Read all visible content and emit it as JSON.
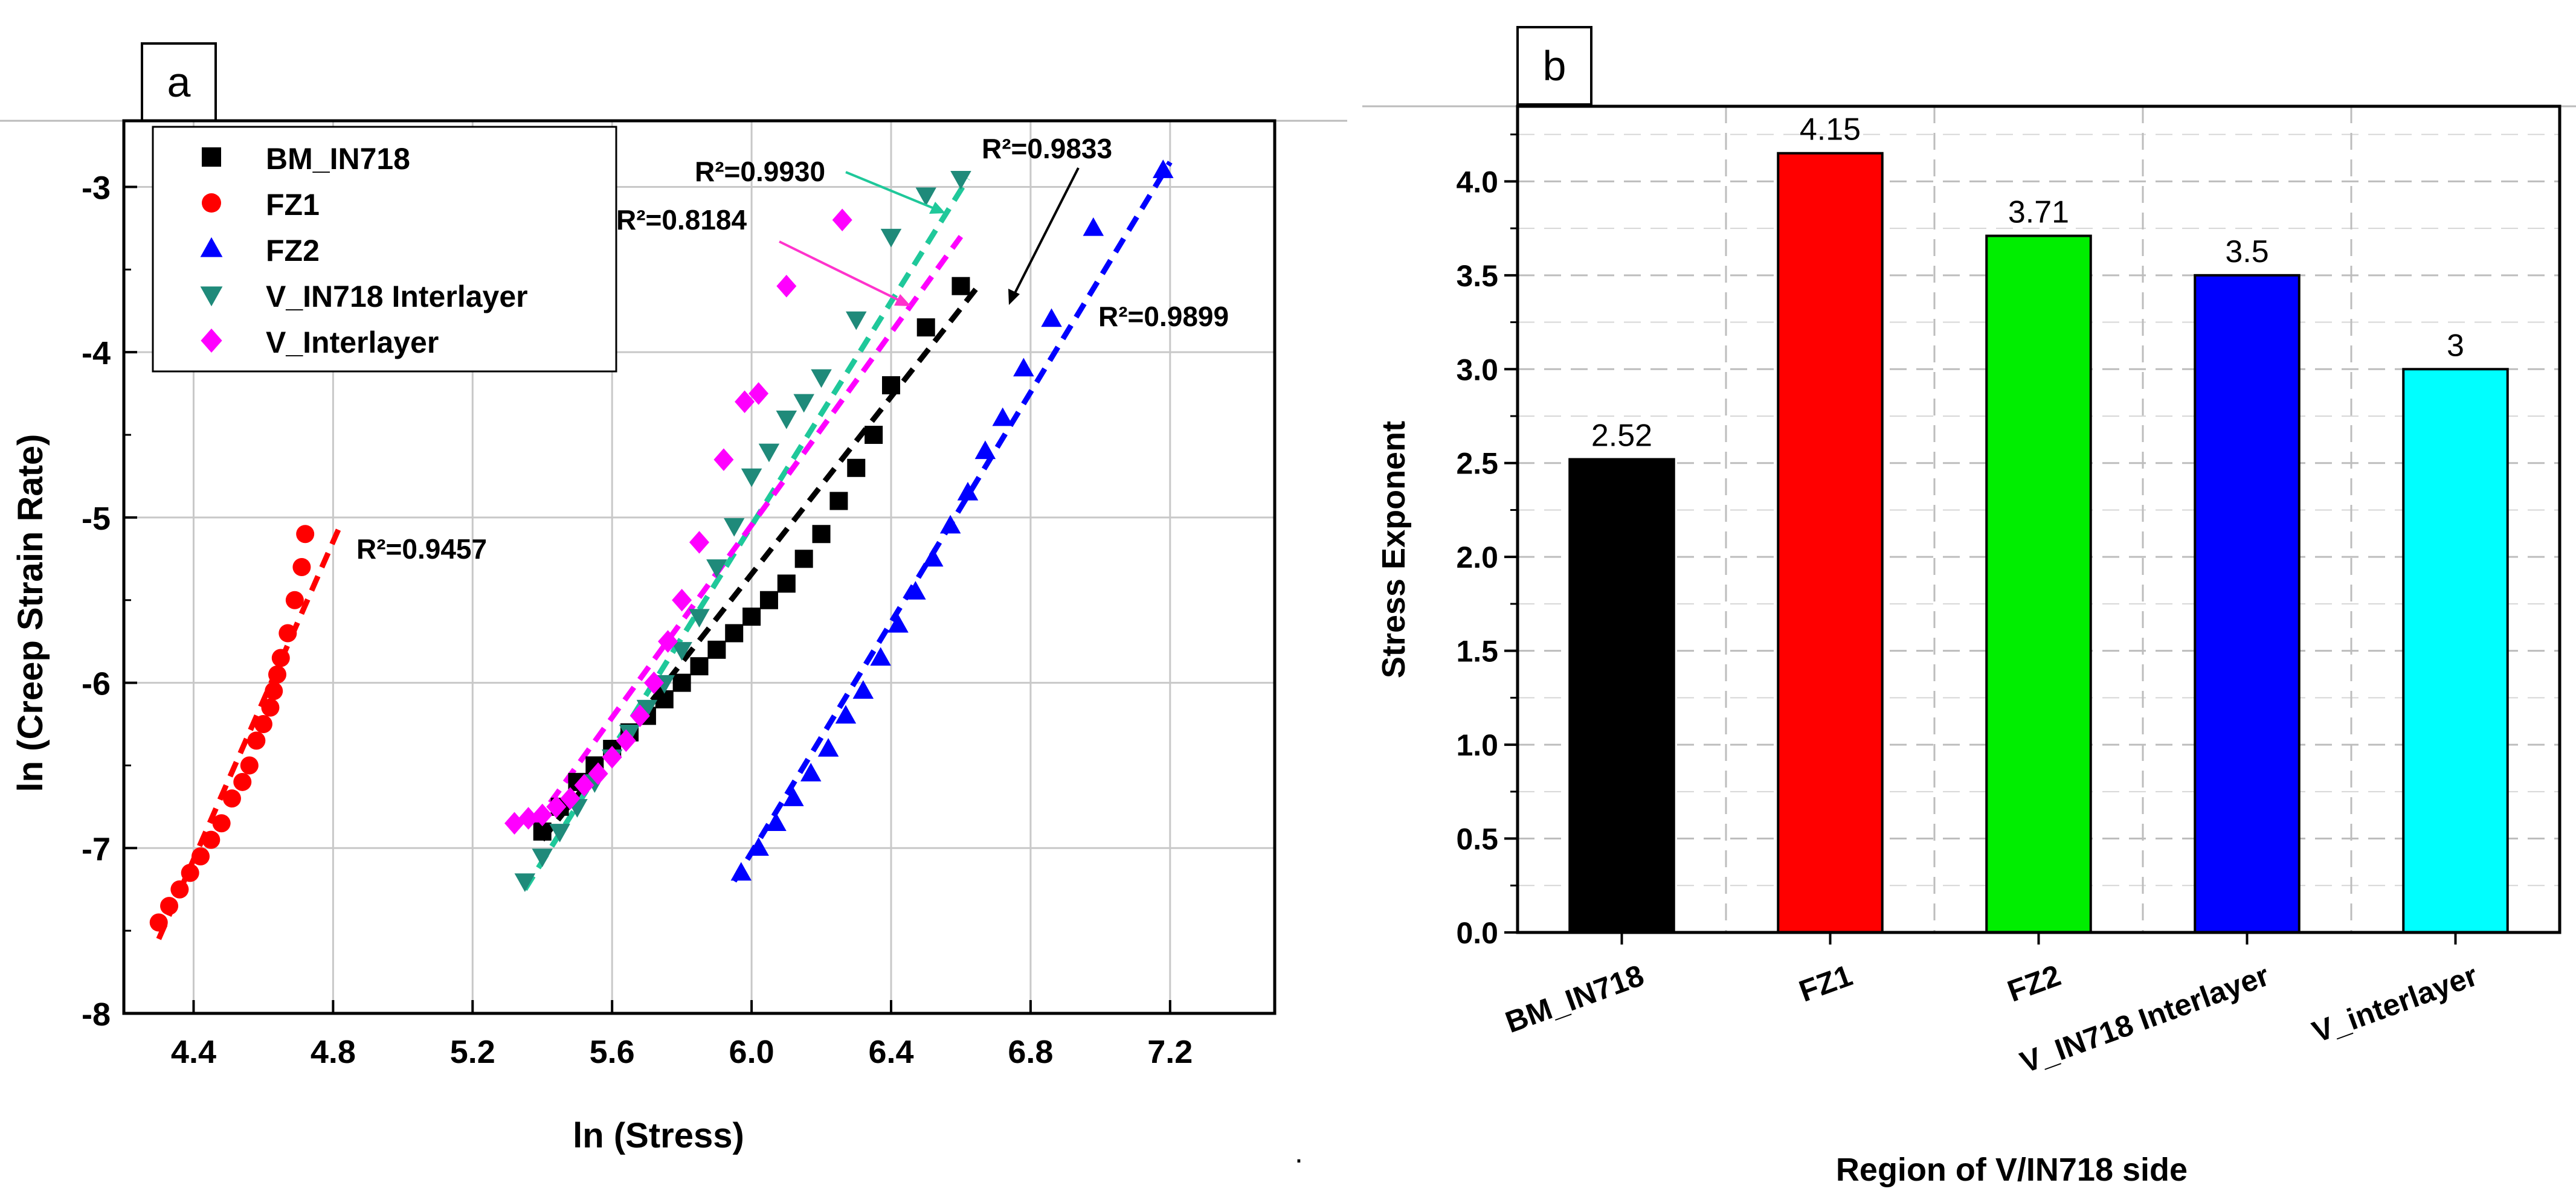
{
  "chart_data": [
    {
      "type": "scatter",
      "panel_label": "a",
      "title": "",
      "xlabel": "ln (Stress)",
      "ylabel": "ln (Creep Strain Rate)",
      "xlim": [
        4.2,
        7.5
      ],
      "ylim": [
        -8,
        -2.6
      ],
      "xticks": [
        4.4,
        4.8,
        5.2,
        5.6,
        6.0,
        6.4,
        6.8,
        7.2
      ],
      "xtick_labels": [
        "4.4",
        "4.8",
        "5.2",
        "5.6",
        "6.0",
        "6.4",
        "6.8",
        "7.2"
      ],
      "yticks": [
        -8,
        -7,
        -6,
        -5,
        -4,
        -3
      ],
      "ytick_labels": [
        "-8",
        "-7",
        "-6",
        "-5",
        "-4",
        "-3"
      ],
      "grid": true,
      "legend_position": "top-left",
      "series": [
        {
          "name": "BM_IN718",
          "color": "#000000",
          "marker": "square",
          "x": [
            5.4,
            5.45,
            5.5,
            5.55,
            5.6,
            5.65,
            5.7,
            5.75,
            5.8,
            5.85,
            5.9,
            5.95,
            6.0,
            6.05,
            6.1,
            6.15,
            6.2,
            6.25,
            6.3,
            6.35,
            6.4,
            6.5,
            6.6
          ],
          "y": [
            -6.9,
            -6.75,
            -6.6,
            -6.5,
            -6.4,
            -6.3,
            -6.2,
            -6.1,
            -6.0,
            -5.9,
            -5.8,
            -5.7,
            -5.6,
            -5.5,
            -5.4,
            -5.25,
            -5.1,
            -4.9,
            -4.7,
            -4.5,
            -4.2,
            -3.85,
            -3.6
          ],
          "fit": {
            "x": [
              5.4,
              6.65
            ],
            "y": [
              -6.95,
              -3.6
            ]
          },
          "r2_label": "R²=0.9833"
        },
        {
          "name": "FZ1",
          "color": "#ff0000",
          "marker": "circle",
          "x": [
            4.3,
            4.33,
            4.36,
            4.39,
            4.42,
            4.45,
            4.48,
            4.51,
            4.54,
            4.56,
            4.58,
            4.6,
            4.62,
            4.63,
            4.64,
            4.65,
            4.67,
            4.69,
            4.71,
            4.72
          ],
          "y": [
            -7.45,
            -7.35,
            -7.25,
            -7.15,
            -7.05,
            -6.95,
            -6.85,
            -6.7,
            -6.6,
            -6.5,
            -6.35,
            -6.25,
            -6.15,
            -6.05,
            -5.95,
            -5.85,
            -5.7,
            -5.5,
            -5.3,
            -5.1
          ],
          "fit": {
            "x": [
              4.3,
              4.82
            ],
            "y": [
              -7.55,
              -5.05
            ]
          },
          "r2_label": "R²=0.9457"
        },
        {
          "name": "FZ2",
          "color": "#0000ff",
          "marker": "triangle-up",
          "x": [
            5.97,
            6.02,
            6.07,
            6.12,
            6.17,
            6.22,
            6.27,
            6.32,
            6.37,
            6.42,
            6.47,
            6.52,
            6.57,
            6.62,
            6.67,
            6.72,
            6.78,
            6.86,
            6.98,
            7.18
          ],
          "y": [
            -7.15,
            -7.0,
            -6.85,
            -6.7,
            -6.55,
            -6.4,
            -6.2,
            -6.05,
            -5.85,
            -5.65,
            -5.45,
            -5.25,
            -5.05,
            -4.85,
            -4.6,
            -4.4,
            -4.1,
            -3.8,
            -3.25,
            -2.9
          ],
          "fit": {
            "x": [
              5.95,
              7.2
            ],
            "y": [
              -7.2,
              -2.85
            ]
          },
          "r2_label": "R²=0.9899"
        },
        {
          "name": "V_IN718 Interlayer",
          "color": "#1f8a7a",
          "marker": "triangle-down",
          "x": [
            5.35,
            5.4,
            5.45,
            5.5,
            5.55,
            5.6,
            5.65,
            5.7,
            5.75,
            5.8,
            5.85,
            5.9,
            5.95,
            6.0,
            6.05,
            6.1,
            6.15,
            6.2,
            6.3,
            6.4,
            6.5,
            6.6
          ],
          "y": [
            -7.2,
            -7.05,
            -6.9,
            -6.75,
            -6.6,
            -6.45,
            -6.3,
            -6.15,
            -6.0,
            -5.8,
            -5.6,
            -5.3,
            -5.05,
            -4.75,
            -4.6,
            -4.4,
            -4.3,
            -4.15,
            -3.8,
            -3.3,
            -3.05,
            -2.95
          ],
          "fit": {
            "x": [
              5.35,
              6.62
            ],
            "y": [
              -7.25,
              -2.95
            ]
          },
          "r2_label": "R²=0.9930"
        },
        {
          "name": "V_Interlayer",
          "color": "#ff00ff",
          "marker": "diamond",
          "x": [
            5.32,
            5.36,
            5.4,
            5.44,
            5.48,
            5.52,
            5.56,
            5.6,
            5.64,
            5.68,
            5.72,
            5.76,
            5.8,
            5.85,
            5.92,
            5.98,
            6.02,
            6.1,
            6.26
          ],
          "y": [
            -6.85,
            -6.82,
            -6.8,
            -6.75,
            -6.7,
            -6.62,
            -6.55,
            -6.45,
            -6.35,
            -6.2,
            -6.0,
            -5.75,
            -5.5,
            -5.15,
            -4.65,
            -4.3,
            -4.25,
            -3.6,
            -3.2
          ],
          "fit": {
            "x": [
              5.38,
              6.6
            ],
            "y": [
              -6.85,
              -3.3
            ]
          },
          "r2_label": "R²=0.8184"
        }
      ],
      "annotations": [
        {
          "text": "R²=0.9930",
          "series": "V_IN718 Interlayer"
        },
        {
          "text": "R²=0.9833",
          "series": "BM_IN718"
        },
        {
          "text": "R²=0.8184",
          "series": "V_Interlayer"
        },
        {
          "text": "R²=0.9899",
          "series": "FZ2"
        },
        {
          "text": "R²=0.9457",
          "series": "FZ1"
        }
      ]
    },
    {
      "type": "bar",
      "panel_label": "b",
      "title": "",
      "xlabel": "Region of V/IN718 side",
      "ylabel": "Stress Exponent",
      "ylim": [
        0,
        4.4
      ],
      "yticks": [
        0.0,
        0.5,
        1.0,
        1.5,
        2.0,
        2.5,
        3.0,
        3.5,
        4.0
      ],
      "ytick_labels": [
        "0.0",
        "0.5",
        "1.0",
        "1.5",
        "2.0",
        "2.5",
        "3.0",
        "3.5",
        "4.0"
      ],
      "grid": true,
      "categories": [
        "BM_IN718",
        "FZ1",
        "FZ2",
        "V_IN718 Interlayer",
        "V_interlayer"
      ],
      "values": [
        2.52,
        4.15,
        3.71,
        3.5,
        3.0
      ],
      "value_labels": [
        "2.52",
        "4.15",
        "3.71",
        "3.5",
        "3"
      ],
      "colors": [
        "#000000",
        "#ff0000",
        "#00ee00",
        "#0000ff",
        "#00ffff"
      ]
    }
  ],
  "page_extras": {
    "stray_mark": "."
  }
}
